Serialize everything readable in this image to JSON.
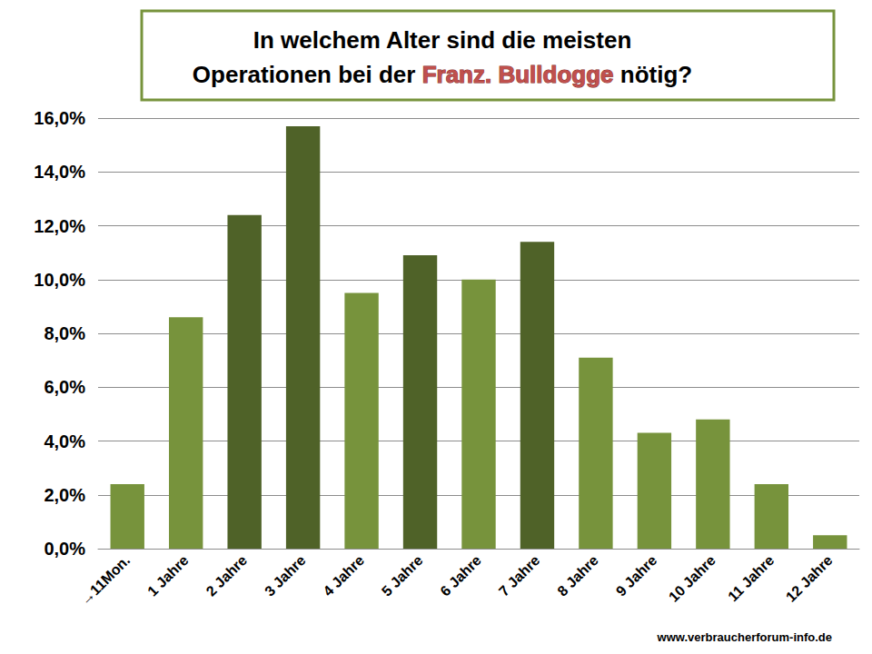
{
  "chart_data": {
    "type": "bar",
    "title": "In welchem Alter sind die meisten Operationen bei der Franz. Bulldogge nötig?",
    "categories": [
      "→11Mon.",
      "1 Jahre",
      "2 Jahre",
      "3 Jahre",
      "4 Jahre",
      "5 Jahre",
      "6 Jahre",
      "7 Jahre",
      "8 Jahre",
      "9 Jahre",
      "10 Jahre",
      "11 Jahre",
      "12 Jahre"
    ],
    "values": [
      2.4,
      8.6,
      12.4,
      15.7,
      9.5,
      10.9,
      10.0,
      11.4,
      7.1,
      4.3,
      4.8,
      2.4,
      0.5
    ],
    "colors": [
      "#77933c",
      "#77933c",
      "#4f6228",
      "#4f6228",
      "#77933c",
      "#4f6228",
      "#77933c",
      "#4f6228",
      "#77933c",
      "#77933c",
      "#77933c",
      "#77933c",
      "#77933c"
    ],
    "ylim": [
      0,
      16
    ],
    "yticks": [
      {
        "value": 0,
        "label": "0,0%"
      },
      {
        "value": 2,
        "label": "2,0%"
      },
      {
        "value": 4,
        "label": "4,0%"
      },
      {
        "value": 6,
        "label": "6,0%"
      },
      {
        "value": 8,
        "label": "8,0%"
      },
      {
        "value": 10,
        "label": "10,0%"
      },
      {
        "value": 12,
        "label": "12,0%"
      },
      {
        "value": 14,
        "label": "14,0%"
      },
      {
        "value": 16,
        "label": "16,0%"
      }
    ],
    "grid": true,
    "annotations": [
      "www.verbraucherforum-info.de"
    ]
  }
}
